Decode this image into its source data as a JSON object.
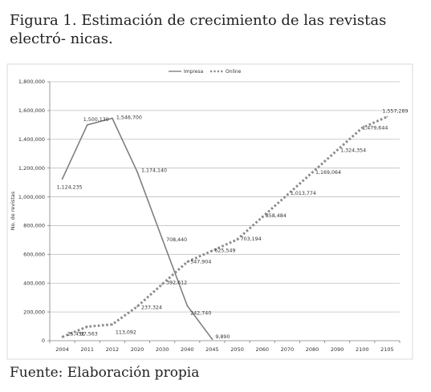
{
  "figure": {
    "caption": "Figura 1. Estimación de crecimiento de las revistas electró- nicas.",
    "source": "Fuente: Elaboración propia"
  },
  "chart_data": {
    "type": "line",
    "categories": [
      "2004",
      "2011",
      "2012",
      "2020",
      "2030",
      "2040",
      "2045",
      "2050",
      "2060",
      "2070",
      "2080",
      "2090",
      "2100",
      "2105"
    ],
    "ylabel": "No. de revistas",
    "ylim": [
      0,
      1800000
    ],
    "yticks": [
      0,
      200000,
      400000,
      600000,
      800000,
      1000000,
      1200000,
      1400000,
      1600000,
      1800000
    ],
    "ytick_labels": [
      "0",
      "200,000",
      "400,000",
      "600,000",
      "800,000",
      "1,000,000",
      "1,200,000",
      "1,400,000",
      "1,600,000",
      "1,800,000"
    ],
    "grid": true,
    "legend": "top-center",
    "series": [
      {
        "name": "Impresa",
        "style": "solid",
        "color": "#7f7f7f",
        "values": [
          1124235,
          1500130,
          1546700,
          1174140,
          708440,
          242740,
          9890,
          null,
          null,
          null,
          null,
          null,
          null,
          null
        ],
        "labels": [
          "1,124,235",
          "1,500,130",
          "1,546,700",
          "1,174,140",
          "708,440",
          "242,740",
          "9,890",
          null,
          null,
          null,
          null,
          null,
          null,
          null
        ]
      },
      {
        "name": "Online",
        "style": "dotted",
        "color": "#8c8c8c",
        "values": [
          25451,
          97563,
          113092,
          237324,
          392612,
          547904,
          625549,
          703194,
          858484,
          1013774,
          1169064,
          1324354,
          1479644,
          1557289
        ],
        "labels": [
          "25,451",
          "97,563",
          "113,092",
          "237,324",
          "392,612",
          "547,904",
          "625,549",
          "703,194",
          "858,484",
          "1,013,774",
          "1,169,064",
          "1,324,354",
          "1,479,644",
          "1,557,289"
        ]
      }
    ]
  }
}
